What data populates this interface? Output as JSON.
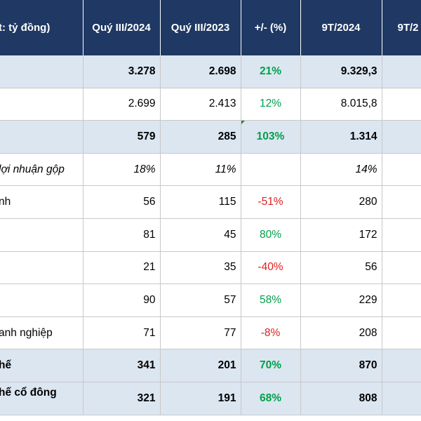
{
  "header": {
    "label": "t: tỷ đồng)",
    "columns": [
      "Quý III/2024",
      "Quý III/2023",
      "+/- (%)",
      "9T/2024",
      "9T/2"
    ]
  },
  "rows": [
    {
      "label": "",
      "q3_2024": "3.278",
      "q3_2023": "2.698",
      "change": "21%",
      "change_sign": "pos",
      "t9_2024": "9.329,3"
    },
    {
      "label": "",
      "q3_2024": "2.699",
      "q3_2023": "2.413",
      "change": "12%",
      "change_sign": "pos",
      "t9_2024": "8.015,8"
    },
    {
      "label": "",
      "q3_2024": "579",
      "q3_2023": "285",
      "change": "103%",
      "change_sign": "pos",
      "t9_2024": "1.314"
    },
    {
      "label": "lợi nhuận gộp",
      "q3_2024": "18%",
      "q3_2023": "11%",
      "change": "",
      "change_sign": "",
      "t9_2024": "14%"
    },
    {
      "label": "nh",
      "q3_2024": "56",
      "q3_2023": "115",
      "change": "-51%",
      "change_sign": "neg",
      "t9_2024": "280"
    },
    {
      "label": "",
      "q3_2024": "81",
      "q3_2023": "45",
      "change": "80%",
      "change_sign": "pos",
      "t9_2024": "172"
    },
    {
      "label": "",
      "q3_2024": "21",
      "q3_2023": "35",
      "change": "-40%",
      "change_sign": "neg",
      "t9_2024": "56"
    },
    {
      "label": "",
      "q3_2024": "90",
      "q3_2023": "57",
      "change": "58%",
      "change_sign": "pos",
      "t9_2024": "229"
    },
    {
      "label": "anh nghiệp",
      "q3_2024": "71",
      "q3_2023": "77",
      "change": "-8%",
      "change_sign": "neg",
      "t9_2024": "208"
    },
    {
      "label": "hế",
      "q3_2024": "341",
      "q3_2023": "201",
      "change": "70%",
      "change_sign": "pos",
      "t9_2024": "870"
    },
    {
      "label": "hế cổ đông",
      "q3_2024": "321",
      "q3_2023": "191",
      "change": "68%",
      "change_sign": "pos",
      "t9_2024": "808"
    }
  ],
  "colors": {
    "header_bg": "#1f3864",
    "shaded_row_bg": "#dce6f1",
    "positive": "#00a04a",
    "negative": "#e02020"
  }
}
